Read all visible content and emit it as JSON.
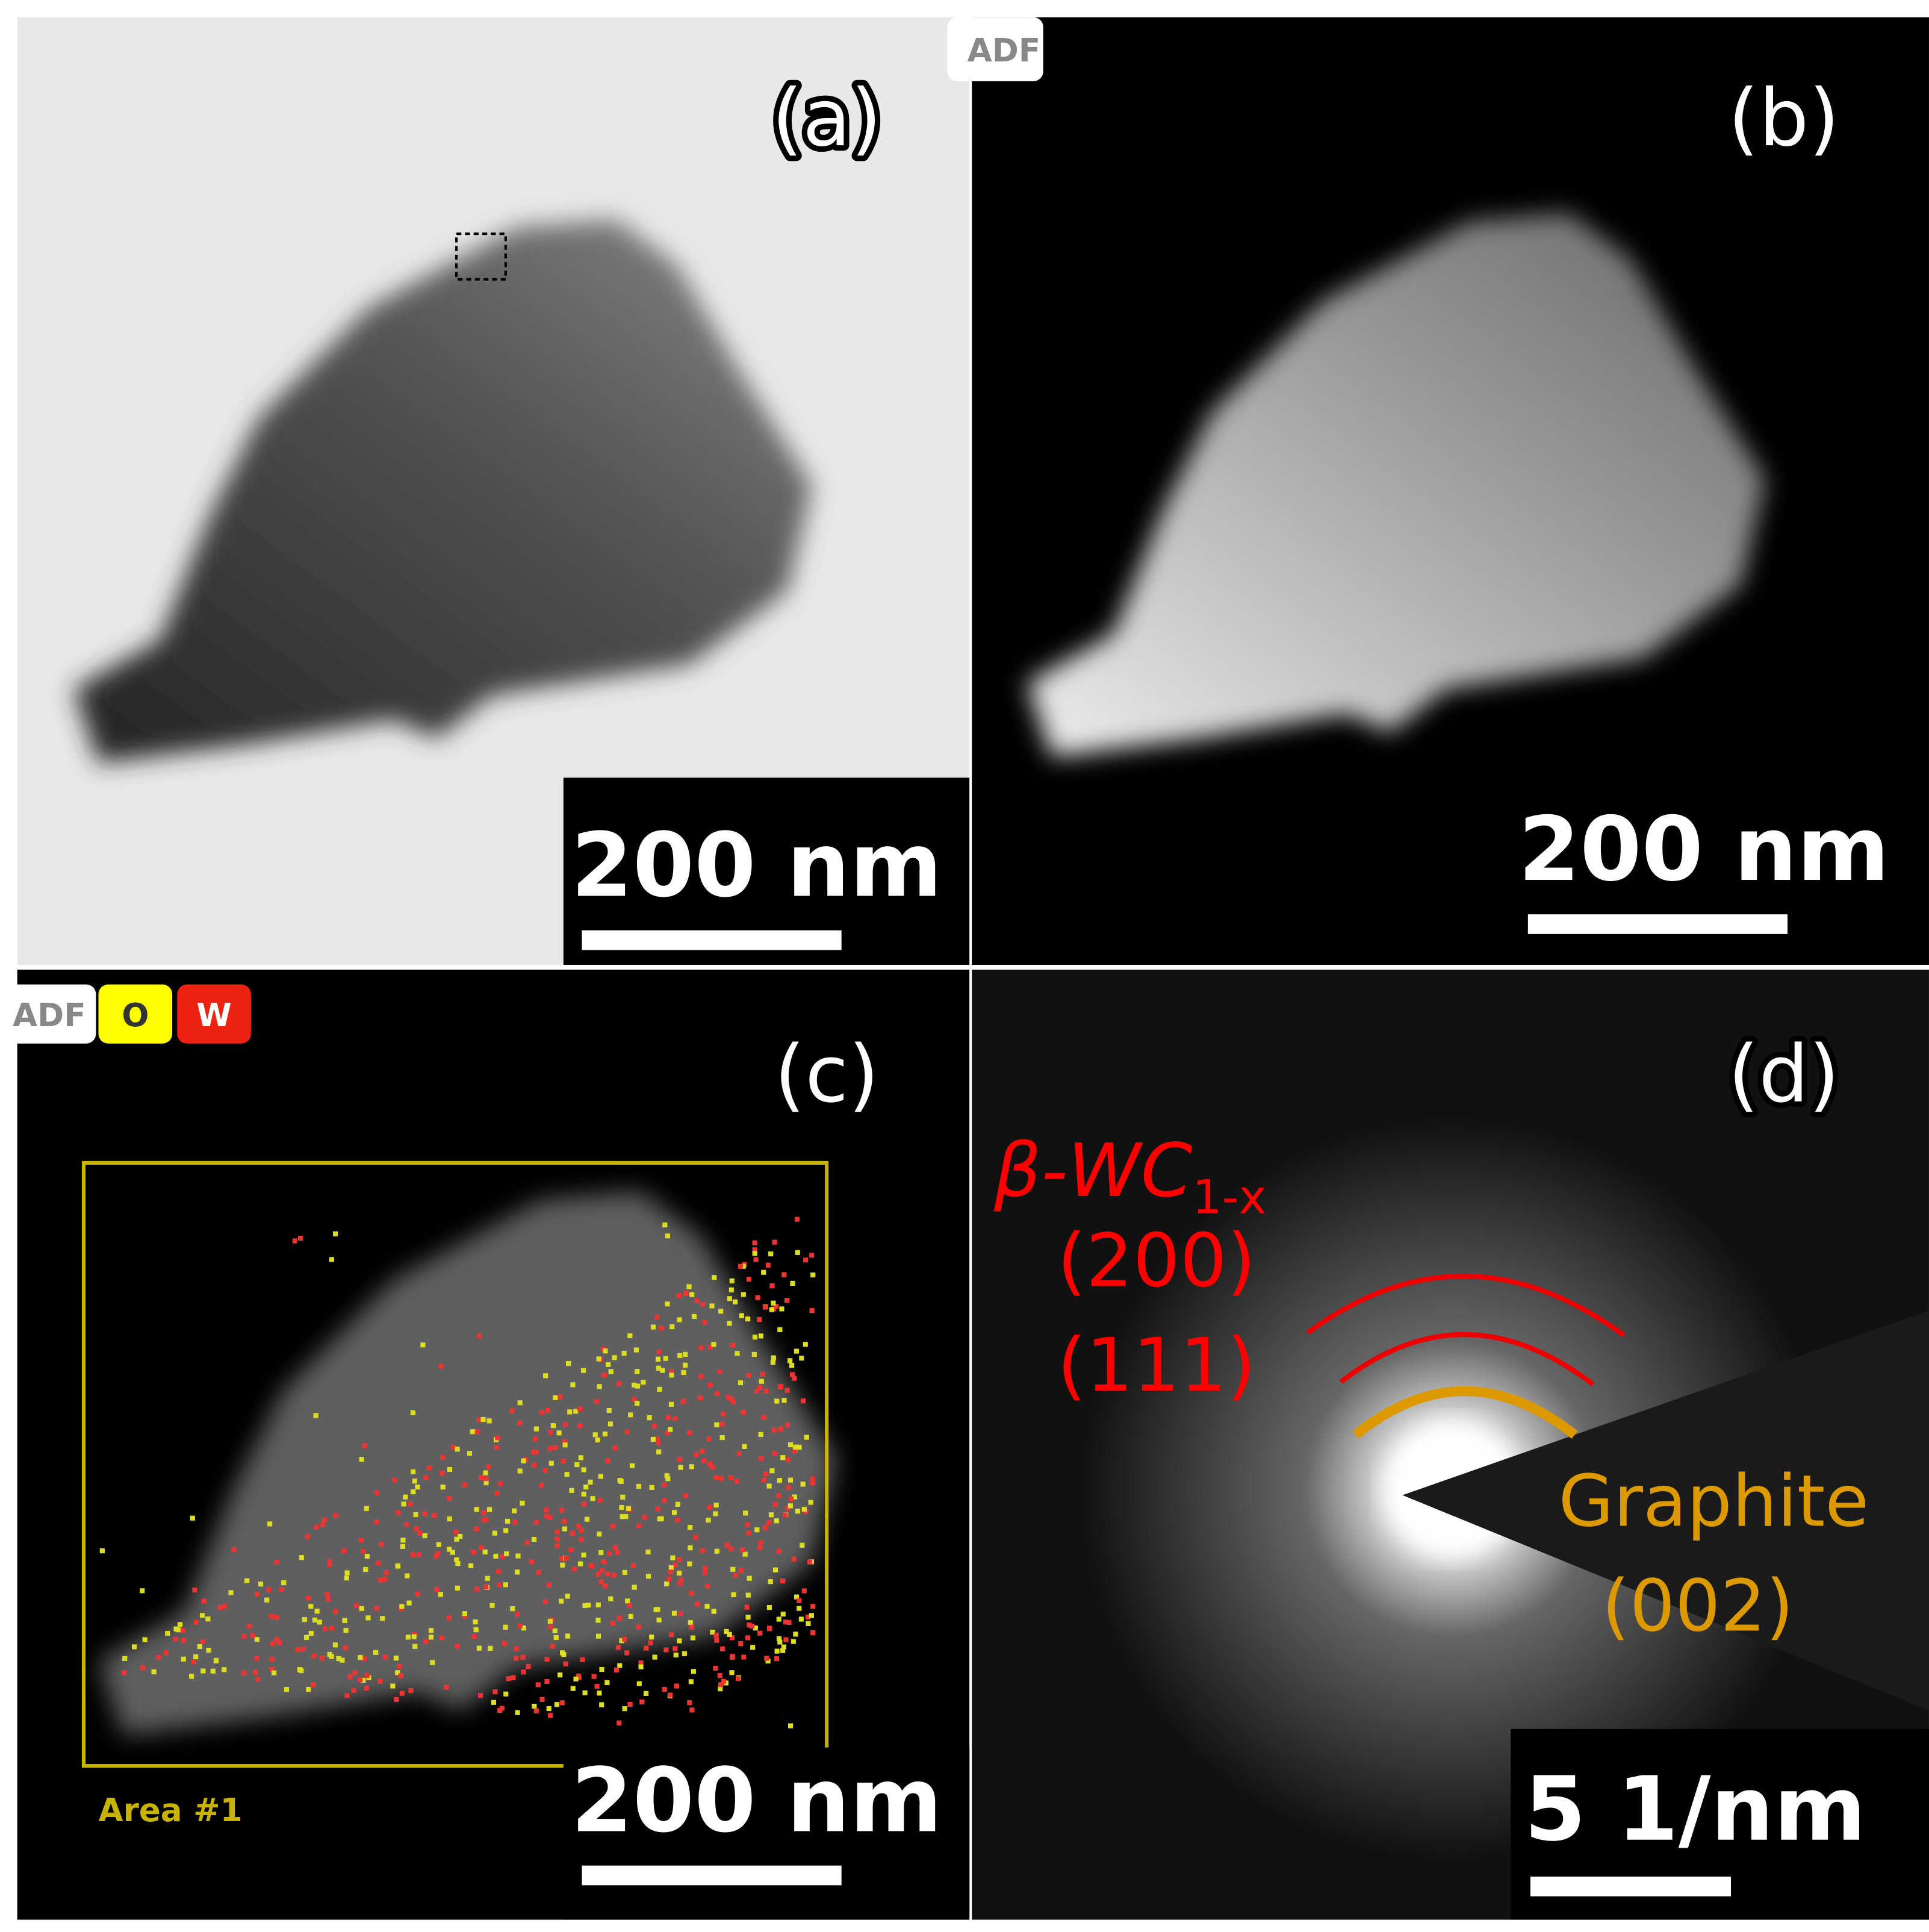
{
  "panels": [
    {
      "label": "(a)",
      "scale_bar": "200 nm"
    },
    {
      "label": "(b)",
      "badge": "ADF",
      "scale_bar": "200 nm"
    },
    {
      "label": "(c)",
      "badges": [
        "ADF",
        "O",
        "W"
      ],
      "area_label": "Area #1",
      "scale_bar": "200 nm"
    },
    {
      "label": "(d)",
      "phase": "β-WC",
      "phase_subscript": "1-x",
      "reflections": [
        "(200)",
        "(111)"
      ],
      "graphite": "Graphite",
      "graphite_reflection": "(002)",
      "scale_bar": "5 1/nm"
    }
  ]
}
